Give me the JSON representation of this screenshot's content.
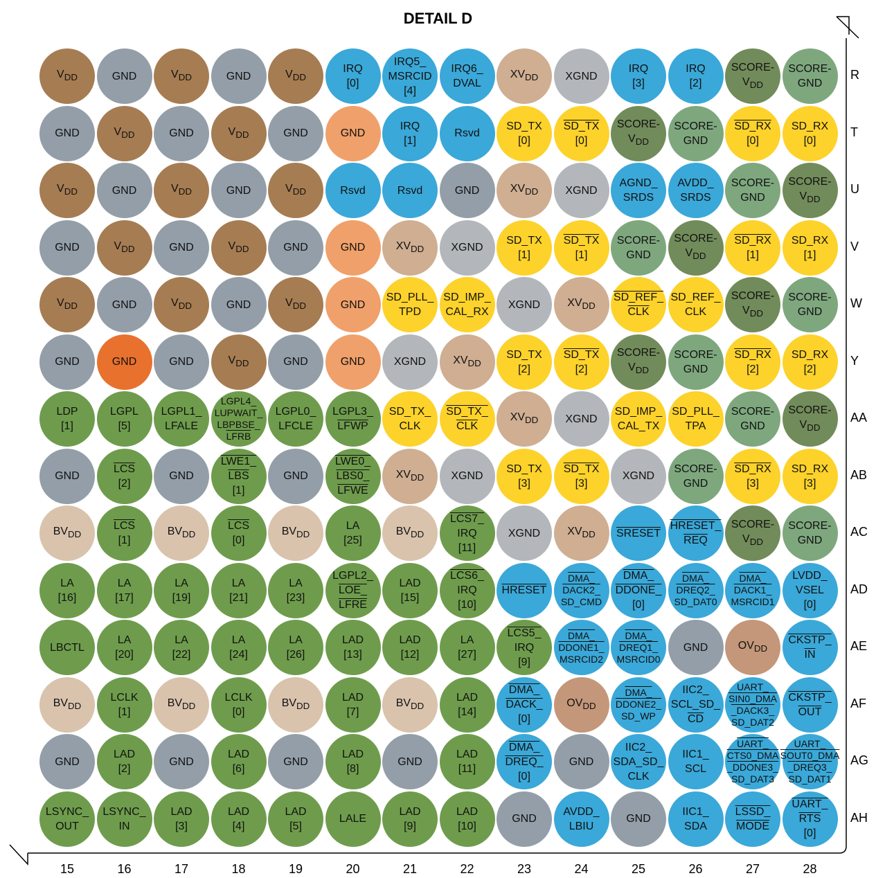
{
  "title": "DETAIL D",
  "colors": {
    "VDD": "#a67c52",
    "GND": "#939ea8",
    "IRQ": "#3aa8d8",
    "XVDD": "#cfae92",
    "XGND": "#b3b7bb",
    "SCORE_VDD": "#718b5a",
    "SCORE_GND": "#7ea77e",
    "SERDES": "#fdd22a",
    "GND_ORANGE_LIGHT": "#f0a06a",
    "GND_ORANGE_DARK": "#e8712e",
    "LBC": "#6e9c4c",
    "BVDD": "#d9c3ad",
    "OVDD": "#c4977a"
  },
  "columns": [
    "15",
    "16",
    "17",
    "18",
    "19",
    "20",
    "21",
    "22",
    "23",
    "24",
    "25",
    "26",
    "27",
    "28"
  ],
  "rows": [
    {
      "label": "R",
      "balls": [
        {
          "c": "VDD",
          "t": "V_DD"
        },
        {
          "c": "GND",
          "t": "GND"
        },
        {
          "c": "VDD",
          "t": "V_DD"
        },
        {
          "c": "GND",
          "t": "GND"
        },
        {
          "c": "VDD",
          "t": "V_DD"
        },
        {
          "c": "IRQ",
          "t": "IRQ|[0]"
        },
        {
          "c": "IRQ",
          "t": "IRQ5_|MSRCID|[4]"
        },
        {
          "c": "IRQ",
          "t": "IRQ6_|DVAL"
        },
        {
          "c": "XVDD",
          "t": "XV_DD"
        },
        {
          "c": "XGND",
          "t": "XGND"
        },
        {
          "c": "IRQ",
          "t": "IRQ|[3]"
        },
        {
          "c": "IRQ",
          "t": "IRQ|[2]"
        },
        {
          "c": "SCORE_VDD",
          "t": "SCORE-|V_DD"
        },
        {
          "c": "SCORE_GND",
          "t": "SCORE-|GND"
        }
      ]
    },
    {
      "label": "T",
      "balls": [
        {
          "c": "GND",
          "t": "GND"
        },
        {
          "c": "VDD",
          "t": "V_DD"
        },
        {
          "c": "GND",
          "t": "GND"
        },
        {
          "c": "VDD",
          "t": "V_DD"
        },
        {
          "c": "GND",
          "t": "GND"
        },
        {
          "c": "GND_ORANGE_LIGHT",
          "t": "GND"
        },
        {
          "c": "IRQ",
          "t": "IRQ|[1]"
        },
        {
          "c": "IRQ",
          "t": "Rsvd"
        },
        {
          "c": "SERDES",
          "t": "SD_TX|[0]"
        },
        {
          "c": "SERDES",
          "t": "~SD_TX|[0]"
        },
        {
          "c": "SCORE_VDD",
          "t": "SCORE-|V_DD"
        },
        {
          "c": "SCORE_GND",
          "t": "SCORE-|GND"
        },
        {
          "c": "SERDES",
          "t": "~SD_RX|[0]"
        },
        {
          "c": "SERDES",
          "t": "SD_RX|[0]"
        }
      ]
    },
    {
      "label": "U",
      "balls": [
        {
          "c": "VDD",
          "t": "V_DD"
        },
        {
          "c": "GND",
          "t": "GND"
        },
        {
          "c": "VDD",
          "t": "V_DD"
        },
        {
          "c": "GND",
          "t": "GND"
        },
        {
          "c": "VDD",
          "t": "V_DD"
        },
        {
          "c": "IRQ",
          "t": "Rsvd"
        },
        {
          "c": "IRQ",
          "t": "Rsvd"
        },
        {
          "c": "GND",
          "t": "GND"
        },
        {
          "c": "XVDD",
          "t": "XV_DD"
        },
        {
          "c": "XGND",
          "t": "XGND"
        },
        {
          "c": "IRQ",
          "t": "AGND_|SRDS"
        },
        {
          "c": "IRQ",
          "t": "AVDD_|SRDS"
        },
        {
          "c": "SCORE_GND",
          "t": "SCORE-|GND"
        },
        {
          "c": "SCORE_VDD",
          "t": "SCORE-|V_DD"
        }
      ]
    },
    {
      "label": "V",
      "balls": [
        {
          "c": "GND",
          "t": "GND"
        },
        {
          "c": "VDD",
          "t": "V_DD"
        },
        {
          "c": "GND",
          "t": "GND"
        },
        {
          "c": "VDD",
          "t": "V_DD"
        },
        {
          "c": "GND",
          "t": "GND"
        },
        {
          "c": "GND_ORANGE_LIGHT",
          "t": "GND"
        },
        {
          "c": "XVDD",
          "t": "XV_DD"
        },
        {
          "c": "XGND",
          "t": "XGND"
        },
        {
          "c": "SERDES",
          "t": "SD_TX|[1]"
        },
        {
          "c": "SERDES",
          "t": "~SD_TX|[1]"
        },
        {
          "c": "SCORE_GND",
          "t": "SCORE-|GND"
        },
        {
          "c": "SCORE_VDD",
          "t": "SCORE-|V_DD"
        },
        {
          "c": "SERDES",
          "t": "~SD_RX|[1]"
        },
        {
          "c": "SERDES",
          "t": "SD_RX|[1]"
        }
      ]
    },
    {
      "label": "W",
      "balls": [
        {
          "c": "VDD",
          "t": "V_DD"
        },
        {
          "c": "GND",
          "t": "GND"
        },
        {
          "c": "VDD",
          "t": "V_DD"
        },
        {
          "c": "GND",
          "t": "GND"
        },
        {
          "c": "VDD",
          "t": "V_DD"
        },
        {
          "c": "GND_ORANGE_LIGHT",
          "t": "GND"
        },
        {
          "c": "SERDES",
          "t": "SD_PLL_|TPD"
        },
        {
          "c": "SERDES",
          "t": "SD_IMP_|CAL_RX"
        },
        {
          "c": "XGND",
          "t": "XGND"
        },
        {
          "c": "XVDD",
          "t": "XV_DD"
        },
        {
          "c": "SERDES",
          "t": "~SD_REF_|~CLK"
        },
        {
          "c": "SERDES",
          "t": "SD_REF_|CLK"
        },
        {
          "c": "SCORE_VDD",
          "t": "SCORE-|V_DD"
        },
        {
          "c": "SCORE_GND",
          "t": "SCORE-|GND"
        }
      ]
    },
    {
      "label": "Y",
      "balls": [
        {
          "c": "GND",
          "t": "GND"
        },
        {
          "c": "GND_ORANGE_DARK",
          "t": "GND"
        },
        {
          "c": "GND",
          "t": "GND"
        },
        {
          "c": "VDD",
          "t": "V_DD"
        },
        {
          "c": "GND",
          "t": "GND"
        },
        {
          "c": "GND_ORANGE_LIGHT",
          "t": "GND"
        },
        {
          "c": "XGND",
          "t": "XGND"
        },
        {
          "c": "XVDD",
          "t": "XV_DD"
        },
        {
          "c": "SERDES",
          "t": "SD_TX|[2]"
        },
        {
          "c": "SERDES",
          "t": "~SD_TX|[2]"
        },
        {
          "c": "SCORE_VDD",
          "t": "SCORE-|V_DD"
        },
        {
          "c": "SCORE_GND",
          "t": "SCORE-|GND"
        },
        {
          "c": "SERDES",
          "t": "~SD_RX|[2]"
        },
        {
          "c": "SERDES",
          "t": "SD_RX|[2]"
        }
      ]
    },
    {
      "label": "AA",
      "balls": [
        {
          "c": "LBC",
          "t": "LDP|[1]"
        },
        {
          "c": "LBC",
          "t": "LGPL|[5]"
        },
        {
          "c": "LBC",
          "t": "LGPL1_|LFALE"
        },
        {
          "c": "LBC",
          "t": "LGPL4_|LUPWAIT_|LBPBSE_|~LFRB",
          "d": true
        },
        {
          "c": "LBC",
          "t": "LGPL0_|LFCLE"
        },
        {
          "c": "LBC",
          "t": "LGPL3_|~LFWP"
        },
        {
          "c": "SERDES",
          "t": "SD_TX_|CLK"
        },
        {
          "c": "SERDES",
          "t": "~SD_TX_|~CLK"
        },
        {
          "c": "XVDD",
          "t": "XV_DD"
        },
        {
          "c": "XGND",
          "t": "XGND"
        },
        {
          "c": "SERDES",
          "t": "SD_IMP_|CAL_TX"
        },
        {
          "c": "SERDES",
          "t": "SD_PLL_|TPA"
        },
        {
          "c": "SCORE_GND",
          "t": "SCORE-|GND"
        },
        {
          "c": "SCORE_VDD",
          "t": "SCORE-|V_DD"
        }
      ]
    },
    {
      "label": "AB",
      "balls": [
        {
          "c": "GND",
          "t": "GND"
        },
        {
          "c": "LBC",
          "t": "~LCS|[2]"
        },
        {
          "c": "GND",
          "t": "GND"
        },
        {
          "c": "LBC",
          "t": "~LWE1_|~LBS|[1]"
        },
        {
          "c": "GND",
          "t": "GND"
        },
        {
          "c": "LBC",
          "t": "~LWE0_|~LBS0_|~LFWE"
        },
        {
          "c": "XVDD",
          "t": "XV_DD"
        },
        {
          "c": "XGND",
          "t": "XGND"
        },
        {
          "c": "SERDES",
          "t": "SD_TX|[3]"
        },
        {
          "c": "SERDES",
          "t": "~SD_TX|[3]"
        },
        {
          "c": "XGND",
          "t": "XGND"
        },
        {
          "c": "SCORE_GND",
          "t": "SCORE-|GND"
        },
        {
          "c": "SERDES",
          "t": "~SD_RX|[3]"
        },
        {
          "c": "SERDES",
          "t": "SD_RX|[3]"
        }
      ]
    },
    {
      "label": "AC",
      "balls": [
        {
          "c": "BVDD",
          "t": "BV_DD"
        },
        {
          "c": "LBC",
          "t": "~LCS|[1]"
        },
        {
          "c": "BVDD",
          "t": "BV_DD"
        },
        {
          "c": "LBC",
          "t": "~LCS|[0]"
        },
        {
          "c": "BVDD",
          "t": "BV_DD"
        },
        {
          "c": "LBC",
          "t": "LA|[25]"
        },
        {
          "c": "BVDD",
          "t": "BV_DD"
        },
        {
          "c": "LBC",
          "t": "~LCS7_|IRQ|[11]"
        },
        {
          "c": "XGND",
          "t": "XGND"
        },
        {
          "c": "XVDD",
          "t": "XV_DD"
        },
        {
          "c": "IRQ",
          "t": "~SRESET"
        },
        {
          "c": "IRQ",
          "t": "~HRESET_|~REQ"
        },
        {
          "c": "SCORE_VDD",
          "t": "SCORE-|V_DD"
        },
        {
          "c": "SCORE_GND",
          "t": "SCORE-|GND"
        }
      ]
    },
    {
      "label": "AD",
      "balls": [
        {
          "c": "LBC",
          "t": "LA|[16]"
        },
        {
          "c": "LBC",
          "t": "LA|[17]"
        },
        {
          "c": "LBC",
          "t": "LA|[19]"
        },
        {
          "c": "LBC",
          "t": "LA|[21]"
        },
        {
          "c": "LBC",
          "t": "LA|[23]"
        },
        {
          "c": "LBC",
          "t": "LGPL2_|~LOE_|~LFRE"
        },
        {
          "c": "LBC",
          "t": "LAD|[15]"
        },
        {
          "c": "LBC",
          "t": "~LCS6_|IRQ|[10]"
        },
        {
          "c": "IRQ",
          "t": "~HRESET"
        },
        {
          "c": "IRQ",
          "t": "~DMA_|~DACK2_|SD_CMD",
          "d": true
        },
        {
          "c": "IRQ",
          "t": "~DMA_|~DDONE_|[0]"
        },
        {
          "c": "IRQ",
          "t": "~DMA_|~DREQ2_|SD_DAT0",
          "d": true
        },
        {
          "c": "IRQ",
          "t": "~DMA_|~DACK1_|MSRCID1",
          "d": true
        },
        {
          "c": "IRQ",
          "t": "LVDD_|VSEL|[0]"
        }
      ]
    },
    {
      "label": "AE",
      "balls": [
        {
          "c": "LBC",
          "t": "LBCTL"
        },
        {
          "c": "LBC",
          "t": "LA|[20]"
        },
        {
          "c": "LBC",
          "t": "LA|[22]"
        },
        {
          "c": "LBC",
          "t": "LA|[24]"
        },
        {
          "c": "LBC",
          "t": "LA|[26]"
        },
        {
          "c": "LBC",
          "t": "LAD|[13]"
        },
        {
          "c": "LBC",
          "t": "LAD|[12]"
        },
        {
          "c": "LBC",
          "t": "LA|[27]"
        },
        {
          "c": "LBC",
          "t": "~LCS5_|IRQ|[9]"
        },
        {
          "c": "IRQ",
          "t": "~DMA_|~DDONE1_|MSRCID2",
          "d": true
        },
        {
          "c": "IRQ",
          "t": "~DMA_|~DREQ1_|MSRCID0",
          "d": true
        },
        {
          "c": "GND",
          "t": "GND"
        },
        {
          "c": "OVDD",
          "t": "OV_DD"
        },
        {
          "c": "IRQ",
          "t": "~CKSTP_|~IN"
        }
      ]
    },
    {
      "label": "AF",
      "balls": [
        {
          "c": "BVDD",
          "t": "BV_DD"
        },
        {
          "c": "LBC",
          "t": "LCLK|[1]"
        },
        {
          "c": "BVDD",
          "t": "BV_DD"
        },
        {
          "c": "LBC",
          "t": "LCLK|[0]"
        },
        {
          "c": "BVDD",
          "t": "BV_DD"
        },
        {
          "c": "LBC",
          "t": "LAD|[7]"
        },
        {
          "c": "BVDD",
          "t": "BV_DD"
        },
        {
          "c": "LBC",
          "t": "LAD|[14]"
        },
        {
          "c": "IRQ",
          "t": "~DMA_|~DACK_|[0]"
        },
        {
          "c": "OVDD",
          "t": "OV_DD"
        },
        {
          "c": "IRQ",
          "t": "~DMA_|~DDONE2_|SD_WP",
          "d": true
        },
        {
          "c": "IRQ",
          "t": "IIC2_|SCL_SD_|~CD"
        },
        {
          "c": "IRQ",
          "t": "UART_|~SIN0_DMA|~_DACK3_|SD_DAT2",
          "d": true
        },
        {
          "c": "IRQ",
          "t": "~CKSTP_|~OUT"
        }
      ]
    },
    {
      "label": "AG",
      "balls": [
        {
          "c": "GND",
          "t": "GND"
        },
        {
          "c": "LBC",
          "t": "LAD|[2]"
        },
        {
          "c": "GND",
          "t": "GND"
        },
        {
          "c": "LBC",
          "t": "LAD|[6]"
        },
        {
          "c": "GND",
          "t": "GND"
        },
        {
          "c": "LBC",
          "t": "LAD|[8]"
        },
        {
          "c": "GND",
          "t": "GND"
        },
        {
          "c": "LBC",
          "t": "LAD|[11]"
        },
        {
          "c": "IRQ",
          "t": "~DMA_|~DREQ_|[0]"
        },
        {
          "c": "GND",
          "t": "GND"
        },
        {
          "c": "IRQ",
          "t": "IIC2_|SDA_SD_|CLK"
        },
        {
          "c": "IRQ",
          "t": "IIC1_|SCL"
        },
        {
          "c": "IRQ",
          "t": "~UART_|~CTS0_DMA|~_DDONE3_|SD_DAT3",
          "d": true
        },
        {
          "c": "IRQ",
          "t": "UART_|~SOUT0_DMA|~_DREQ3_|SD_DAT1",
          "d": true
        }
      ]
    },
    {
      "label": "AH",
      "balls": [
        {
          "c": "LBC",
          "t": "LSYNC_|OUT"
        },
        {
          "c": "LBC",
          "t": "LSYNC_|IN"
        },
        {
          "c": "LBC",
          "t": "LAD|[3]"
        },
        {
          "c": "LBC",
          "t": "LAD|[4]"
        },
        {
          "c": "LBC",
          "t": "LAD|[5]"
        },
        {
          "c": "LBC",
          "t": "LALE"
        },
        {
          "c": "LBC",
          "t": "LAD|[9]"
        },
        {
          "c": "LBC",
          "t": "LAD|[10]"
        },
        {
          "c": "GND",
          "t": "GND"
        },
        {
          "c": "IRQ",
          "t": "AVDD_|LBIU"
        },
        {
          "c": "GND",
          "t": "GND"
        },
        {
          "c": "IRQ",
          "t": "IIC1_|SDA"
        },
        {
          "c": "IRQ",
          "t": "~LSSD_|~MODE"
        },
        {
          "c": "IRQ",
          "t": "~UART_|~RTS|[0]"
        }
      ]
    }
  ]
}
